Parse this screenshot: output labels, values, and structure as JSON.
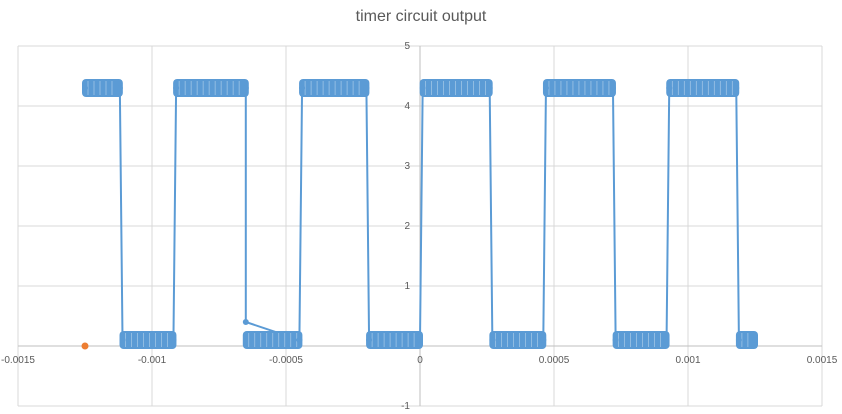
{
  "chart_data": {
    "type": "scatter",
    "title": "timer circuit output",
    "xlabel": "",
    "ylabel": "",
    "xlim": [
      -0.0015,
      0.0015
    ],
    "ylim": [
      -1,
      5
    ],
    "grid": true,
    "x_ticks": [
      -0.0015,
      -0.001,
      -0.0005,
      0,
      0.0005,
      0.001,
      0.0015
    ],
    "x_tick_labels": [
      "-0.0015",
      "-0.001",
      "-0.0005",
      "0",
      "0.0005",
      "0.001",
      "0.0015"
    ],
    "y_ticks": [
      -1,
      0,
      1,
      2,
      3,
      4,
      5
    ],
    "y_tick_labels": [
      "-1",
      "0",
      "1",
      "2",
      "3",
      "4",
      "5"
    ],
    "colors": {
      "series1": "#5b9bd5",
      "series2": "#ed7d31",
      "grid": "#d9d9d9",
      "axis": "#bfbfbf"
    },
    "series": [
      {
        "color": "#5b9bd5",
        "style": "line-markers",
        "high_band": [
          4.2,
          4.4
        ],
        "low_band": [
          0,
          0.2
        ],
        "x": [
          -0.00125,
          -0.00112,
          -0.00111,
          -0.00092,
          -0.00091,
          -0.00065,
          -0.00065,
          -0.00045,
          -0.00044,
          -0.0002,
          -0.00019,
          0.0,
          1e-05,
          0.00026,
          0.00027,
          0.00046,
          0.00047,
          0.00072,
          0.00073,
          0.00092,
          0.00093,
          0.00118,
          0.00119,
          0.00125
        ],
        "y": [
          4.3,
          4.3,
          0.1,
          0.1,
          4.3,
          4.3,
          0.4,
          0.1,
          4.3,
          4.3,
          0.1,
          0.1,
          4.3,
          4.3,
          0.1,
          0.1,
          4.3,
          4.3,
          0.1,
          0.1,
          4.3,
          4.3,
          0.1,
          0.1
        ]
      },
      {
        "color": "#ed7d31",
        "style": "markers",
        "x": [
          -0.00125
        ],
        "y": [
          0
        ]
      }
    ]
  }
}
